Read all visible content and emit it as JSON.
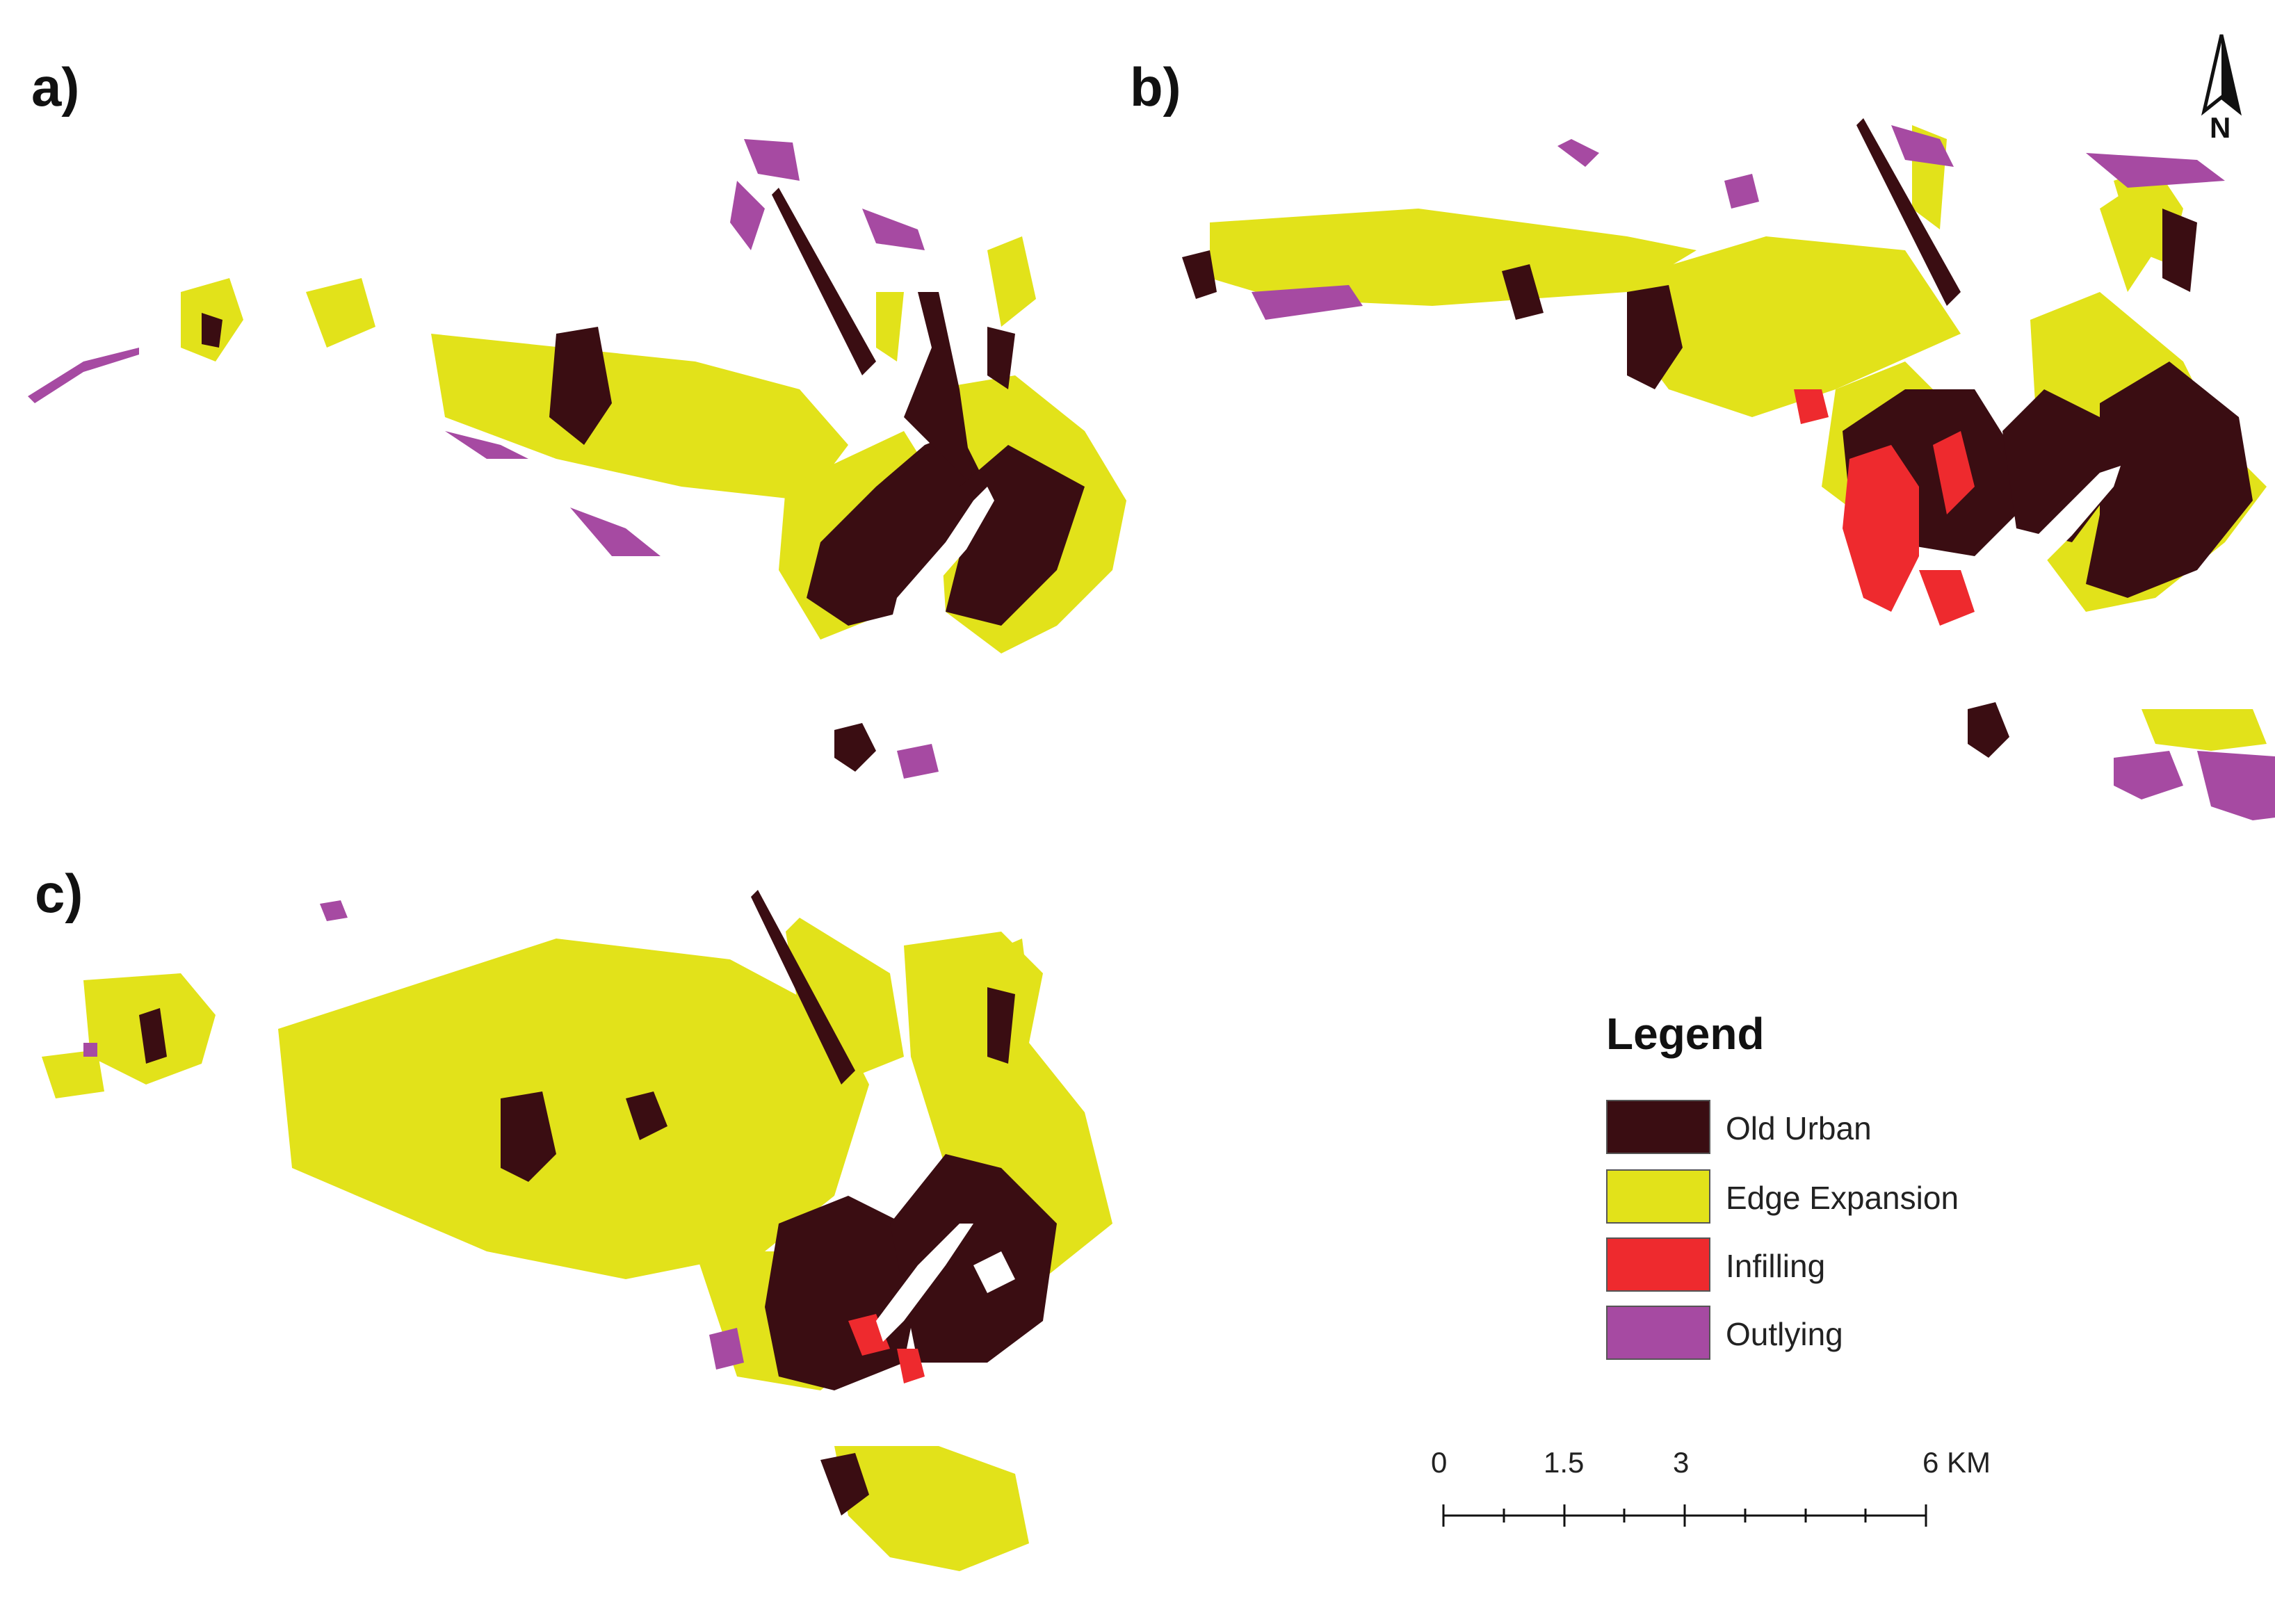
{
  "panels": [
    {
      "label": "a)"
    },
    {
      "label": "b)"
    },
    {
      "label": "c)"
    }
  ],
  "north_arrow": {
    "label": "N"
  },
  "legend": {
    "title": "Legend",
    "items": [
      {
        "label": "Old Urban",
        "color": "#3a0d12"
      },
      {
        "label": "Edge Expansion",
        "color": "#e2e21a"
      },
      {
        "label": "Infilling",
        "color": "#ee2a2e"
      },
      {
        "label": "Outlying",
        "color": "#a64aa2"
      }
    ]
  },
  "scale_bar": {
    "labels": [
      "0",
      "1.5",
      "3",
      "6 KM"
    ]
  }
}
